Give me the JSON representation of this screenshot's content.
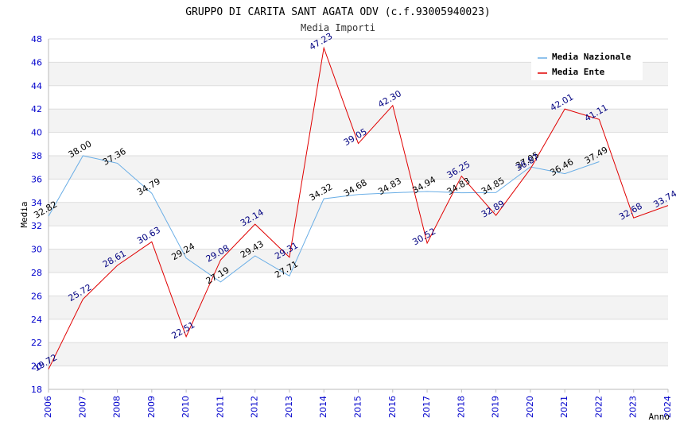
{
  "chart_data": {
    "type": "line",
    "title": "GRUPPO DI CARITA SANT AGATA ODV (c.f.93005940023)",
    "subtitle": "Media Importi",
    "xlabel": "Anno",
    "ylabel": "Media",
    "ylim": [
      18,
      48
    ],
    "ytick_step": 2,
    "grid": true,
    "legend_position": "top-right",
    "x": [
      "2006",
      "2007",
      "2008",
      "2009",
      "2010",
      "2011",
      "2012",
      "2013",
      "2014",
      "2015",
      "2016",
      "2017",
      "2018",
      "2019",
      "2020",
      "2021",
      "2022",
      "2023",
      "2024"
    ],
    "series": [
      {
        "name": "Media Nazionale",
        "color": "#6aaee6",
        "label_color": "#000000",
        "values": [
          32.82,
          38.0,
          37.36,
          34.79,
          29.24,
          27.19,
          29.43,
          27.71,
          34.32,
          34.68,
          34.83,
          34.94,
          34.83,
          34.85,
          37.05,
          36.46,
          37.49,
          null,
          null
        ],
        "labels": [
          "32.82",
          "38.00",
          "37.36",
          "34.79",
          "29.24",
          "27.19",
          "29.43",
          "27.71",
          "34.32",
          "34.68",
          "34.83",
          "34.94",
          "34.83",
          "34.85",
          "37.05",
          "36.46",
          "37.49",
          "",
          ""
        ]
      },
      {
        "name": "Media Ente",
        "color": "#e00000",
        "label_color": "#000080",
        "values": [
          19.72,
          25.72,
          28.61,
          30.63,
          22.51,
          29.08,
          32.14,
          29.31,
          47.23,
          39.05,
          42.3,
          30.52,
          36.25,
          32.89,
          36.87,
          42.01,
          41.11,
          32.68,
          33.74
        ],
        "labels": [
          "19.72",
          "25.72",
          "28.61",
          "30.63",
          "22.51",
          "29.08",
          "32.14",
          "29.31",
          "47.23",
          "39.05",
          "42.30",
          "30.52",
          "36.25",
          "32.89",
          "36.87",
          "42.01",
          "41.11",
          "32.68",
          "33.74"
        ]
      }
    ]
  }
}
